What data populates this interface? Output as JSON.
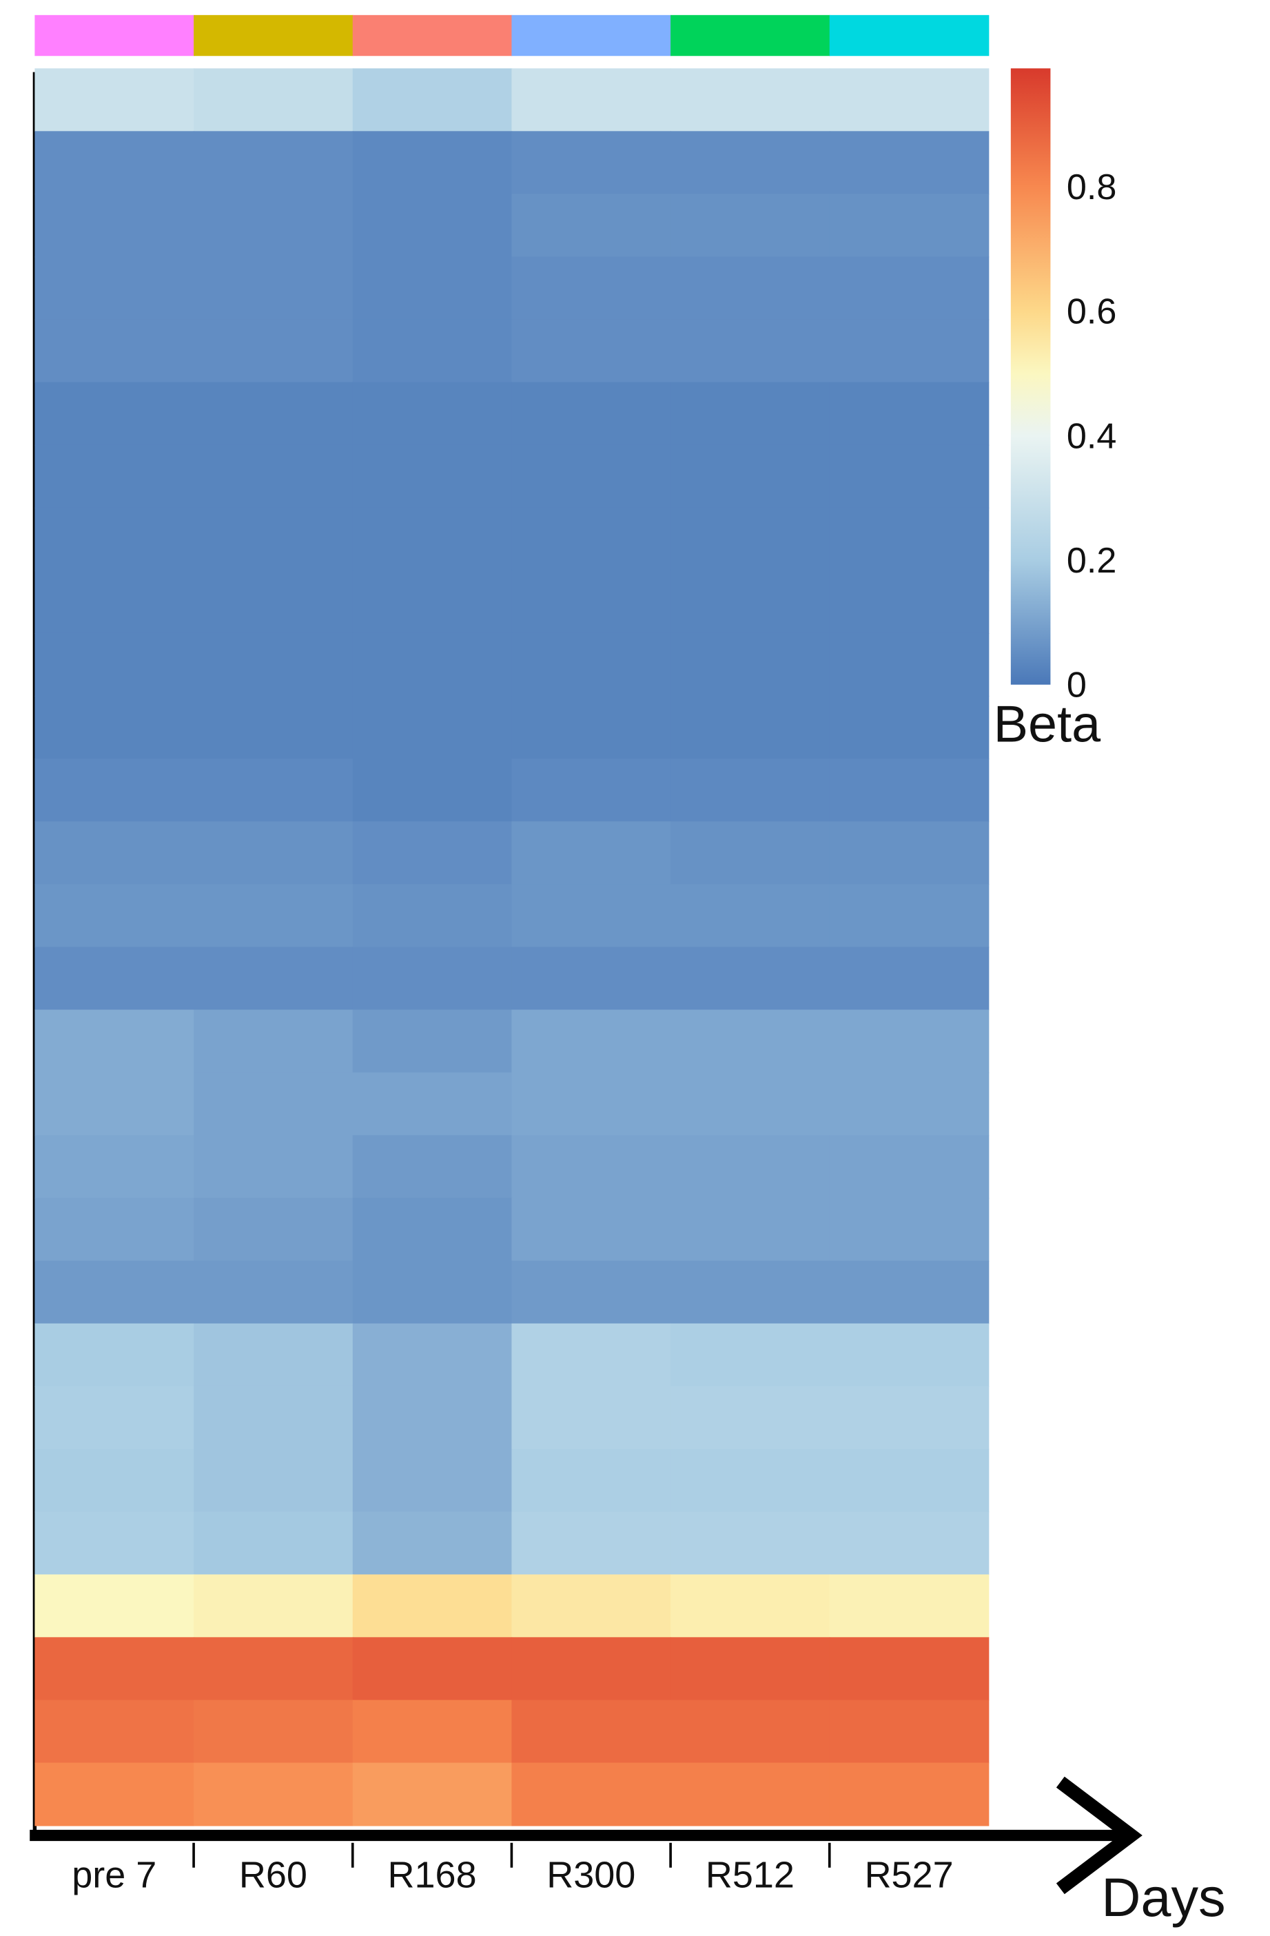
{
  "chart_data": {
    "type": "heatmap",
    "x_label": "Days",
    "categories": [
      "pre 7",
      "R60",
      "R168",
      "R300",
      "R512",
      "R527"
    ],
    "category_colors": [
      "#ff80ff",
      "#d4b800",
      "#fa8072",
      "#80b0ff",
      "#00d35a",
      "#00d8e0"
    ],
    "z": [
      [
        0.3,
        0.28,
        0.22,
        0.3,
        0.3,
        0.3
      ],
      [
        0.05,
        0.05,
        0.04,
        0.05,
        0.05,
        0.05
      ],
      [
        0.05,
        0.05,
        0.04,
        0.06,
        0.06,
        0.06
      ],
      [
        0.05,
        0.05,
        0.04,
        0.05,
        0.05,
        0.05
      ],
      [
        0.05,
        0.05,
        0.04,
        0.05,
        0.05,
        0.05
      ],
      [
        0.03,
        0.03,
        0.03,
        0.03,
        0.03,
        0.03
      ],
      [
        0.03,
        0.03,
        0.03,
        0.03,
        0.03,
        0.03
      ],
      [
        0.03,
        0.03,
        0.03,
        0.03,
        0.03,
        0.03
      ],
      [
        0.03,
        0.03,
        0.03,
        0.03,
        0.03,
        0.03
      ],
      [
        0.03,
        0.03,
        0.03,
        0.03,
        0.03,
        0.03
      ],
      [
        0.03,
        0.03,
        0.03,
        0.03,
        0.03,
        0.03
      ],
      [
        0.04,
        0.04,
        0.03,
        0.04,
        0.04,
        0.04
      ],
      [
        0.06,
        0.06,
        0.05,
        0.07,
        0.06,
        0.06
      ],
      [
        0.07,
        0.07,
        0.06,
        0.07,
        0.07,
        0.07
      ],
      [
        0.05,
        0.05,
        0.05,
        0.05,
        0.05,
        0.05
      ],
      [
        0.12,
        0.1,
        0.08,
        0.11,
        0.11,
        0.11
      ],
      [
        0.12,
        0.1,
        0.1,
        0.11,
        0.11,
        0.11
      ],
      [
        0.11,
        0.1,
        0.08,
        0.1,
        0.1,
        0.1
      ],
      [
        0.1,
        0.09,
        0.07,
        0.1,
        0.1,
        0.1
      ],
      [
        0.08,
        0.08,
        0.07,
        0.08,
        0.08,
        0.08
      ],
      [
        0.2,
        0.18,
        0.13,
        0.22,
        0.21,
        0.21
      ],
      [
        0.21,
        0.18,
        0.13,
        0.22,
        0.22,
        0.22
      ],
      [
        0.2,
        0.18,
        0.13,
        0.21,
        0.21,
        0.21
      ],
      [
        0.21,
        0.19,
        0.14,
        0.22,
        0.22,
        0.22
      ],
      [
        0.5,
        0.52,
        0.58,
        0.55,
        0.53,
        0.52
      ],
      [
        0.88,
        0.88,
        0.9,
        0.9,
        0.9,
        0.9
      ],
      [
        0.85,
        0.84,
        0.82,
        0.87,
        0.87,
        0.87
      ],
      [
        0.8,
        0.78,
        0.75,
        0.82,
        0.82,
        0.82
      ]
    ],
    "colorbar": {
      "label": "Beta",
      "lim": [
        0,
        0.99
      ],
      "ticks": [
        0,
        0.2,
        0.4,
        0.6,
        0.8
      ]
    },
    "colormap": [
      [
        0,
        "#4a78b8"
      ],
      [
        0.2,
        "#a9cde3"
      ],
      [
        0.4,
        "#eaf4f2"
      ],
      [
        0.5,
        "#fbf7c0"
      ],
      [
        0.6,
        "#fdd889"
      ],
      [
        0.8,
        "#f7884f"
      ],
      [
        0.99,
        "#d83a2c"
      ]
    ]
  }
}
